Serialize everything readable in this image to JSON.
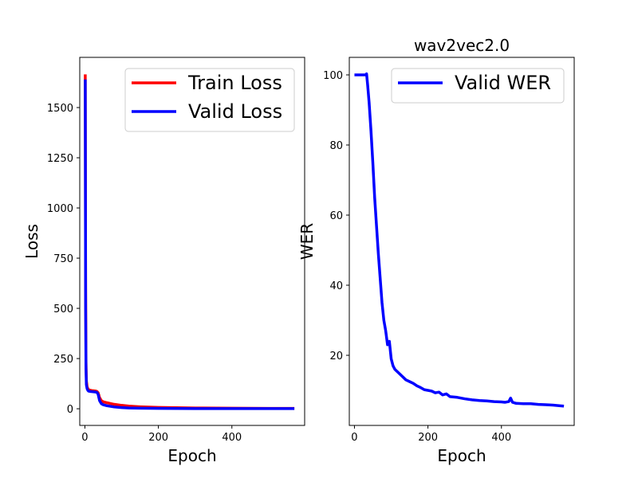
{
  "colors": {
    "train": "#ff0000",
    "valid": "#0000ff"
  },
  "chart_data": [
    {
      "type": "line",
      "title": "",
      "xlabel": "Epoch",
      "ylabel": "Loss",
      "xlim": [
        -14,
        598
      ],
      "ylim": [
        -83,
        1750
      ],
      "xticks": [
        0,
        200,
        400
      ],
      "yticks": [
        0,
        250,
        500,
        750,
        1000,
        1250,
        1500
      ],
      "legend": "top-right",
      "grid": false,
      "series": [
        {
          "name": "Train Loss",
          "color": "#ff0000",
          "x": [
            1,
            2,
            3,
            4,
            6,
            8,
            10,
            15,
            20,
            25,
            30,
            33,
            36,
            40,
            45,
            50,
            60,
            70,
            80,
            100,
            120,
            150,
            200,
            300,
            400,
            500,
            570
          ],
          "y": [
            1665,
            600,
            230,
            140,
            110,
            100,
            95,
            92,
            90,
            89,
            88,
            86,
            80,
            55,
            40,
            35,
            30,
            26,
            22,
            17,
            13,
            10,
            7,
            4,
            3,
            2,
            2
          ]
        },
        {
          "name": "Valid Loss",
          "color": "#0000ff",
          "x": [
            1,
            2,
            3,
            4,
            6,
            8,
            10,
            15,
            20,
            25,
            30,
            33,
            36,
            40,
            45,
            50,
            60,
            70,
            80,
            100,
            120,
            150,
            200,
            300,
            400,
            500,
            570
          ],
          "y": [
            1640,
            500,
            200,
            120,
            100,
            92,
            88,
            86,
            85,
            84,
            83,
            81,
            72,
            40,
            25,
            20,
            15,
            12,
            9,
            6,
            4,
            3,
            2,
            1,
            1,
            1,
            1
          ]
        }
      ]
    },
    {
      "type": "line",
      "title": "wav2vec2.0",
      "xlabel": "Epoch",
      "ylabel": "WER",
      "xlim": [
        -14,
        598
      ],
      "ylim": [
        0,
        105
      ],
      "xticks": [
        0,
        200,
        400
      ],
      "yticks": [
        20,
        40,
        60,
        80,
        100
      ],
      "legend": "top-right",
      "grid": false,
      "series": [
        {
          "name": "Valid WER",
          "color": "#0000ff",
          "x": [
            0,
            10,
            20,
            30,
            33,
            36,
            40,
            45,
            50,
            55,
            60,
            65,
            70,
            75,
            80,
            85,
            90,
            95,
            100,
            105,
            110,
            120,
            130,
            140,
            150,
            160,
            170,
            180,
            190,
            200,
            210,
            220,
            230,
            240,
            250,
            260,
            280,
            300,
            320,
            340,
            360,
            380,
            400,
            410,
            420,
            425,
            430,
            440,
            460,
            480,
            500,
            520,
            540,
            560,
            570
          ],
          "y": [
            100,
            100,
            100,
            100,
            100.3,
            97,
            92,
            84,
            75,
            65,
            57,
            49,
            42,
            35,
            30,
            27,
            23,
            24,
            19,
            17,
            16,
            15,
            14,
            13,
            12.5,
            12,
            11.3,
            10.8,
            10.2,
            10,
            9.8,
            9.3,
            9.5,
            8.7,
            9,
            8.2,
            8,
            7.6,
            7.3,
            7.1,
            7,
            6.8,
            6.7,
            6.6,
            6.8,
            7.8,
            6.6,
            6.3,
            6.2,
            6.2,
            6,
            5.9,
            5.8,
            5.6,
            5.5
          ]
        }
      ]
    }
  ]
}
